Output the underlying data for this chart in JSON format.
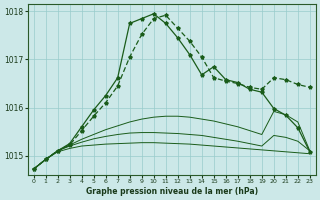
{
  "xlabel": "Graphe pression niveau de la mer (hPa)",
  "bg_color": "#cce8e8",
  "grid_color": "#99cccc",
  "line_color": "#1a5c1a",
  "x": [
    0,
    1,
    2,
    3,
    4,
    5,
    6,
    7,
    8,
    9,
    10,
    11,
    12,
    13,
    14,
    15,
    16,
    17,
    18,
    19,
    20,
    21,
    22,
    23
  ],
  "line_flat1": [
    1014.72,
    1014.92,
    1015.08,
    1015.15,
    1015.2,
    1015.22,
    1015.24,
    1015.25,
    1015.26,
    1015.27,
    1015.27,
    1015.26,
    1015.25,
    1015.24,
    1015.22,
    1015.2,
    1015.18,
    1015.16,
    1015.14,
    1015.12,
    1015.1,
    1015.08,
    1015.06,
    1015.04
  ],
  "line_flat2": [
    1014.72,
    1014.92,
    1015.1,
    1015.2,
    1015.28,
    1015.35,
    1015.4,
    1015.44,
    1015.47,
    1015.48,
    1015.48,
    1015.47,
    1015.46,
    1015.44,
    1015.42,
    1015.38,
    1015.34,
    1015.3,
    1015.25,
    1015.2,
    1015.42,
    1015.38,
    1015.3,
    1015.1
  ],
  "line_flat3": [
    1014.72,
    1014.92,
    1015.1,
    1015.22,
    1015.34,
    1015.44,
    1015.54,
    1015.62,
    1015.7,
    1015.76,
    1015.8,
    1015.82,
    1015.82,
    1015.8,
    1015.76,
    1015.72,
    1015.66,
    1015.6,
    1015.52,
    1015.44,
    1015.92,
    1015.85,
    1015.7,
    1015.1
  ],
  "line_peak1": [
    1014.72,
    1014.92,
    1015.1,
    1015.25,
    1015.6,
    1015.95,
    1016.25,
    1016.62,
    1017.75,
    1017.85,
    1017.95,
    1017.75,
    1017.45,
    1017.1,
    1016.68,
    1016.85,
    1016.58,
    1016.52,
    1016.38,
    1016.32,
    1015.98,
    1015.84,
    1015.58,
    1015.08
  ],
  "line_peak2": [
    1014.72,
    1014.92,
    1015.1,
    1015.22,
    1015.52,
    1015.82,
    1016.1,
    1016.45,
    1017.05,
    1017.52,
    1017.85,
    1017.92,
    1017.65,
    1017.38,
    1017.05,
    1016.62,
    1016.55,
    1016.5,
    1016.42,
    1016.38,
    1016.62,
    1016.58,
    1016.48,
    1016.42
  ],
  "ylim": [
    1014.6,
    1018.15
  ],
  "yticks": [
    1015,
    1016,
    1017,
    1018
  ],
  "xticks": [
    0,
    1,
    2,
    3,
    4,
    5,
    6,
    7,
    8,
    9,
    10,
    11,
    12,
    13,
    14,
    15,
    16,
    17,
    18,
    19,
    20,
    21,
    22,
    23
  ]
}
